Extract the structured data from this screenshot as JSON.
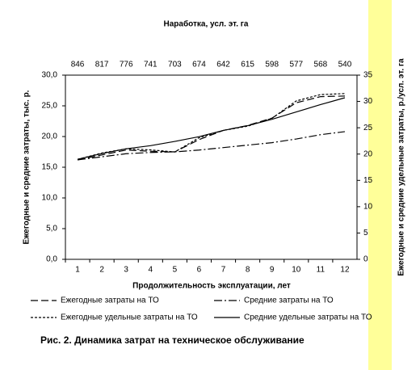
{
  "chart_data": {
    "type": "line",
    "x2_title": "Наработка, усл. эт. га",
    "x2_labels": [
      846,
      817,
      776,
      741,
      703,
      674,
      642,
      615,
      598,
      577,
      568,
      540
    ],
    "x_label": "Продолжительность эксплуатации, лет",
    "y_label": "Ежегодные и средние затраты, тыс. р.",
    "y2_label": "Ежегодные и средние удельные затраты, р./усл. эт. га",
    "caption": "Рис. 2. Динамика затрат на техническое обслуживание",
    "categories": [
      1,
      2,
      3,
      4,
      5,
      6,
      7,
      8,
      9,
      10,
      11,
      12
    ],
    "ylim": [
      0,
      30
    ],
    "yticks": [
      {
        "value": 0,
        "label": "0,0"
      },
      {
        "value": 5,
        "label": "5,0"
      },
      {
        "value": 10,
        "label": "10,0"
      },
      {
        "value": 15,
        "label": "15,0"
      },
      {
        "value": 20,
        "label": "20,0"
      },
      {
        "value": 25,
        "label": "25,0"
      },
      {
        "value": 30,
        "label": "30,0"
      }
    ],
    "y2lim": [
      0,
      35
    ],
    "y2ticks": [
      0,
      5,
      10,
      15,
      20,
      25,
      30,
      35
    ],
    "series": [
      {
        "name": "Ежегодные затраты на ТО",
        "color": "#000000",
        "style": "dashed",
        "values": [
          16.2,
          17.0,
          17.8,
          17.6,
          17.5,
          19.5,
          21.0,
          21.8,
          23.0,
          25.5,
          26.5,
          26.6
        ]
      },
      {
        "name": "Средние затраты на ТО",
        "color": "#000000",
        "style": "dashdot",
        "values": [
          16.2,
          16.7,
          17.2,
          17.4,
          17.5,
          17.8,
          18.2,
          18.6,
          19.0,
          19.6,
          20.3,
          20.8
        ]
      },
      {
        "name": "Ежегодные удельные затраты на ТО",
        "color": "#000000",
        "style": "dotted",
        "axis": "y2",
        "values": [
          19.0,
          20.2,
          21.0,
          20.8,
          20.4,
          23.1,
          24.5,
          25.3,
          26.8,
          30.1,
          31.3,
          31.5
        ]
      },
      {
        "name": "Средние удельные затраты на ТО",
        "color": "#000000",
        "style": "solid",
        "axis": "y2",
        "values": [
          19.0,
          20.1,
          21.0,
          21.6,
          22.4,
          23.3,
          24.5,
          25.4,
          26.6,
          28.0,
          29.4,
          30.7
        ]
      }
    ]
  }
}
